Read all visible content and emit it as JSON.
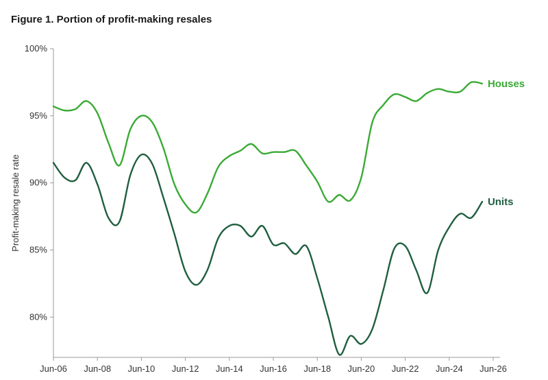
{
  "chart_data": {
    "type": "line",
    "title": "Figure 1. Portion of profit-making resales",
    "xlabel": "",
    "ylabel": "Profit-making resale rate",
    "x_start_label": "Jun-06",
    "x_tick_labels": [
      "Jun-06",
      "Jun-08",
      "Jun-10",
      "Jun-12",
      "Jun-14",
      "Jun-16",
      "Jun-18",
      "Jun-20",
      "Jun-22",
      "Jun-24",
      "Jun-26"
    ],
    "y_tick_labels": [
      "80%",
      "85%",
      "90%",
      "95%",
      "100%"
    ],
    "ylim": [
      77,
      100
    ],
    "y_ticks": [
      80,
      85,
      90,
      95,
      100
    ],
    "grid": false,
    "legend": "direct-labels-right",
    "series": [
      {
        "name": "Houses",
        "color": "#3aaa35",
        "x": [
          "Jun-06",
          "Dec-06",
          "Jun-07",
          "Dec-07",
          "Jun-08",
          "Dec-08",
          "Jun-09",
          "Dec-09",
          "Jun-10",
          "Dec-10",
          "Jun-11",
          "Dec-11",
          "Jun-12",
          "Dec-12",
          "Jun-13",
          "Dec-13",
          "Jun-14",
          "Dec-14",
          "Jun-15",
          "Dec-15",
          "Jun-16",
          "Dec-16",
          "Jun-17",
          "Dec-17",
          "Jun-18",
          "Dec-18",
          "Jun-19",
          "Dec-19",
          "Jun-20",
          "Dec-20",
          "Jun-21",
          "Dec-21",
          "Jun-22",
          "Dec-22",
          "Jun-23",
          "Dec-23",
          "Jun-24",
          "Dec-24",
          "Jun-25",
          "Dec-25"
        ],
        "values": [
          95.7,
          95.4,
          95.5,
          96.1,
          95.2,
          93.0,
          91.3,
          94.0,
          95.0,
          94.5,
          92.6,
          89.9,
          88.4,
          87.8,
          89.2,
          91.2,
          92.0,
          92.4,
          92.9,
          92.2,
          92.3,
          92.3,
          92.4,
          91.3,
          90.1,
          88.6,
          89.1,
          88.7,
          90.4,
          94.5,
          95.8,
          96.6,
          96.4,
          96.1,
          96.7,
          97.0,
          96.8,
          96.8,
          97.5,
          97.4
        ]
      },
      {
        "name": "Units",
        "color": "#1f5e3f",
        "x": [
          "Jun-06",
          "Dec-06",
          "Jun-07",
          "Dec-07",
          "Jun-08",
          "Dec-08",
          "Jun-09",
          "Dec-09",
          "Jun-10",
          "Dec-10",
          "Jun-11",
          "Dec-11",
          "Jun-12",
          "Dec-12",
          "Jun-13",
          "Dec-13",
          "Jun-14",
          "Dec-14",
          "Jun-15",
          "Dec-15",
          "Jun-16",
          "Dec-16",
          "Jun-17",
          "Dec-17",
          "Jun-18",
          "Dec-18",
          "Jun-19",
          "Dec-19",
          "Jun-20",
          "Dec-20",
          "Jun-21",
          "Dec-21",
          "Jun-22",
          "Dec-22",
          "Jun-23",
          "Dec-23",
          "Jun-24",
          "Dec-24",
          "Jun-25",
          "Dec-25"
        ],
        "values": [
          91.5,
          90.4,
          90.2,
          91.5,
          89.9,
          87.4,
          87.1,
          90.6,
          92.1,
          91.4,
          88.9,
          86.2,
          83.4,
          82.4,
          83.5,
          85.9,
          86.8,
          86.8,
          86.0,
          86.8,
          85.4,
          85.5,
          84.7,
          85.3,
          82.9,
          80.0,
          77.2,
          78.6,
          78.0,
          79.1,
          82.0,
          85.1,
          85.3,
          83.5,
          81.8,
          85.0,
          86.7,
          87.7,
          87.4,
          88.6
        ]
      }
    ]
  }
}
